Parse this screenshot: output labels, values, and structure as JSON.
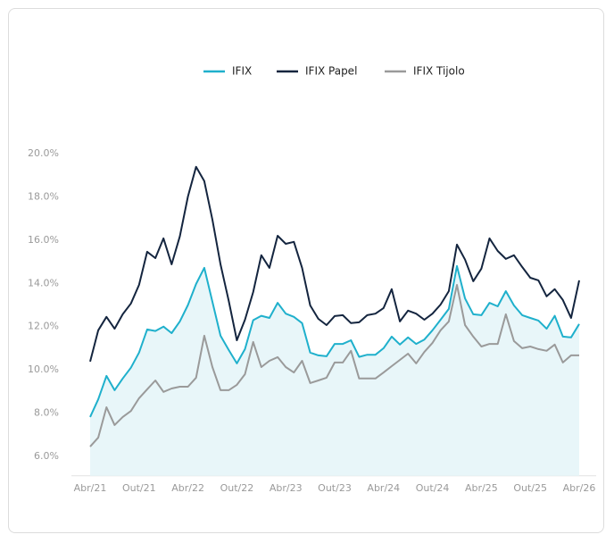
{
  "chart_data": {
    "type": "line",
    "categories": [
      "Abr/21",
      null,
      null,
      null,
      null,
      null,
      "Out/21",
      null,
      null,
      null,
      null,
      null,
      "Abr/22",
      null,
      null,
      null,
      null,
      null,
      "Out/22",
      null,
      null,
      null,
      null,
      null,
      "Abr/23",
      null,
      null,
      null,
      null,
      null,
      "Out/23",
      null,
      null,
      null,
      null,
      null,
      "Abr/24",
      null,
      null,
      null,
      null,
      null,
      "Out/24",
      null,
      null,
      null,
      null,
      null,
      "Abr/25",
      null,
      null,
      null,
      null,
      null,
      "Out/25",
      null,
      null,
      null,
      null,
      null,
      "Abr/26"
    ],
    "series": [
      {
        "name": "IFIX",
        "color": "#1fb0cc",
        "fill": "#e8f6f9",
        "values": [
          7.82,
          8.64,
          9.72,
          9.06,
          9.6,
          10.1,
          10.8,
          11.87,
          11.8,
          12.0,
          11.7,
          12.24,
          13.0,
          13.97,
          14.72,
          13.15,
          11.58,
          10.92,
          10.3,
          10.96,
          12.3,
          12.5,
          12.4,
          13.1,
          12.6,
          12.45,
          12.16,
          10.8,
          10.67,
          10.63,
          11.2,
          11.2,
          11.37,
          10.6,
          10.7,
          10.7,
          11.0,
          11.54,
          11.17,
          11.5,
          11.2,
          11.4,
          11.83,
          12.32,
          12.82,
          14.8,
          13.3,
          12.57,
          12.53,
          13.1,
          12.94,
          13.64,
          12.98,
          12.53,
          12.4,
          12.28,
          11.9,
          12.5,
          11.54,
          11.5,
          12.12
        ]
      },
      {
        "name": "IFIX Papel",
        "color": "#14253f",
        "values": [
          10.38,
          11.83,
          12.45,
          11.9,
          12.57,
          13.07,
          13.93,
          15.46,
          15.17,
          16.08,
          14.88,
          16.17,
          18.02,
          19.39,
          18.73,
          16.95,
          14.88,
          13.19,
          11.37,
          12.32,
          13.6,
          15.3,
          14.72,
          16.2,
          15.83,
          15.92,
          14.72,
          12.98,
          12.36,
          12.07,
          12.49,
          12.53,
          12.16,
          12.2,
          12.53,
          12.6,
          12.86,
          13.73,
          12.24,
          12.74,
          12.6,
          12.32,
          12.6,
          13.02,
          13.64,
          15.79,
          15.1,
          14.1,
          14.68,
          16.08,
          15.5,
          15.13,
          15.3,
          14.76,
          14.26,
          14.14,
          13.4,
          13.73,
          13.23,
          12.4,
          14.14
        ]
      },
      {
        "name": "IFIX Tijolo",
        "color": "#9a9a9a",
        "values": [
          6.45,
          6.87,
          8.27,
          7.45,
          7.82,
          8.1,
          8.69,
          9.1,
          9.51,
          8.98,
          9.14,
          9.22,
          9.22,
          9.64,
          11.58,
          10.13,
          9.06,
          9.06,
          9.31,
          9.8,
          11.29,
          10.13,
          10.42,
          10.59,
          10.13,
          9.88,
          10.42,
          9.39,
          9.51,
          9.64,
          10.34,
          10.34,
          10.88,
          9.6,
          9.6,
          9.6,
          9.88,
          10.17,
          10.46,
          10.75,
          10.3,
          10.83,
          11.25,
          11.83,
          12.24,
          13.93,
          12.07,
          11.54,
          11.08,
          11.2,
          11.2,
          12.57,
          11.33,
          11.0,
          11.08,
          10.96,
          10.88,
          11.17,
          10.34,
          10.67,
          10.67
        ]
      }
    ],
    "ylim": [
      5.1,
      20.5
    ],
    "yticks": [
      {
        "value": 6,
        "label": "6.0%"
      },
      {
        "value": 8,
        "label": "8.0%"
      },
      {
        "value": 10,
        "label": "10.0%"
      },
      {
        "value": 12,
        "label": "12.0%"
      },
      {
        "value": 14,
        "label": "14.0%"
      },
      {
        "value": 16,
        "label": "16.0%"
      },
      {
        "value": 18,
        "label": "18.0%"
      },
      {
        "value": 20,
        "label": "20.0%"
      }
    ],
    "grid": false,
    "legend": "top"
  }
}
